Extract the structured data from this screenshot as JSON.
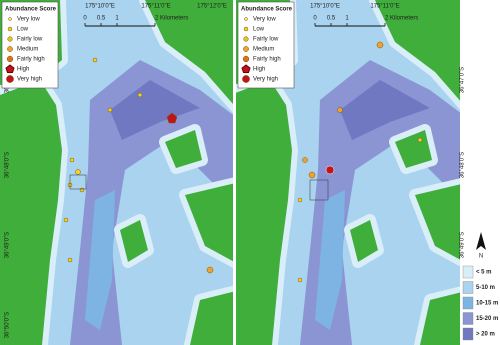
{
  "panels": [
    {
      "lon_labels": [
        "175°10'0\"E",
        "175°11'0\"E",
        "175°12'0\"E"
      ],
      "lat_labels": [
        "36°47'0\"S",
        "36°48'0\"S",
        "36°49'0\"S",
        "36°50'0\"S"
      ],
      "scale_labels": [
        "0",
        "0.5",
        "1",
        "2 Kilometers"
      ],
      "legend": {
        "title": "Abundance Score",
        "items": [
          "Very low",
          "Low",
          "Fairly low",
          "Medium",
          "Fairly high",
          "High",
          "Very high"
        ]
      }
    },
    {
      "lon_labels": [
        "175°10'0\"E",
        "175°11'0\"E"
      ],
      "lat_labels": [
        "36°47'0\"S",
        "36°48'0\"S",
        "36°49'0\"S"
      ],
      "scale_labels": [
        "0",
        "0.5",
        "1",
        "2 Kilometers"
      ],
      "legend": {
        "title": "Abundance Score",
        "items": [
          "Very low",
          "Low",
          "Fairly low",
          "Medium",
          "Fairly high",
          "High",
          "Very high"
        ]
      }
    }
  ],
  "depth_legend": [
    "< 5 m",
    "5-10 m",
    "10-15 m",
    "15-20 m",
    "> 20 m"
  ],
  "north_label": "N"
}
